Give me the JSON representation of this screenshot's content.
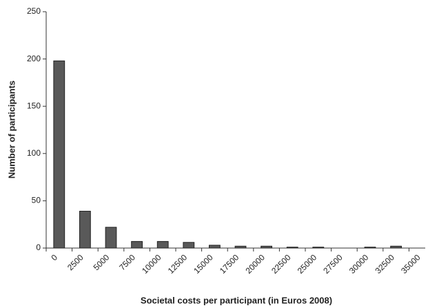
{
  "chart_data": {
    "type": "bar",
    "x_label": "Societal costs per participant (in Euros 2008)",
    "y_label": "Number of participants",
    "categories": [
      "0",
      "2500",
      "5000",
      "7500",
      "10000",
      "12500",
      "15000",
      "17500",
      "20000",
      "22500",
      "25000",
      "27500",
      "30000",
      "32500",
      "35000"
    ],
    "values": [
      198,
      39,
      22,
      7,
      7,
      6,
      3,
      2,
      2,
      1,
      1,
      0,
      1,
      2,
      0
    ],
    "color": "#595959",
    "ylim": [
      0,
      250
    ],
    "yticks": [
      0,
      50,
      100,
      150,
      200,
      250
    ],
    "grid": false
  }
}
